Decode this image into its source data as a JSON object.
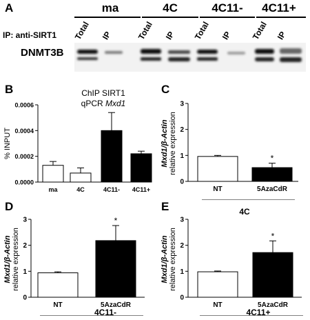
{
  "panelA": {
    "label": "A",
    "groups": [
      "ma",
      "4C",
      "4C11-",
      "4C11+"
    ],
    "lanes": [
      "Total",
      "IP",
      "Total",
      "IP",
      "Total",
      "IP",
      "Total",
      "IP"
    ],
    "ip_text": "IP: anti-SIRT1",
    "blot_label": "DNMT3B"
  },
  "panelB": {
    "label": "B",
    "title_line1": "ChIP SIRT1",
    "title_line2_prefix": "qPCR ",
    "title_line2_gene": "Mxd1"
  },
  "panelC": {
    "label": "C",
    "group_label": "4C"
  },
  "panelD": {
    "label": "D",
    "group_label": "4C11-"
  },
  "panelE": {
    "label": "E",
    "group_label": "4C11+"
  },
  "ylabel_gene": "Mxd1/β-Actin",
  "ylabel_sub": "relative expression",
  "chart_data": [
    {
      "panel": "B",
      "type": "bar",
      "categories": [
        "ma",
        "4C",
        "4C11-",
        "4C11+"
      ],
      "values": [
        0.00013,
        7e-05,
        0.0004,
        0.00022
      ],
      "errors": [
        3e-05,
        4e-05,
        0.00014,
        2e-05
      ],
      "colors": [
        "#ffffff",
        "#ffffff",
        "#000000",
        "#000000"
      ],
      "ylabel": "% INPUT",
      "ylim": [
        0,
        0.0006
      ],
      "yticks": [
        "0.0000",
        "0.0002",
        "0.0004",
        "0.0006"
      ],
      "ytick_values": [
        0,
        0.0002,
        0.0004,
        0.0006
      ]
    },
    {
      "panel": "C",
      "type": "bar",
      "categories": [
        "NT",
        "5AzaCdR"
      ],
      "values": [
        0.96,
        0.53
      ],
      "errors": [
        0.04,
        0.17
      ],
      "colors": [
        "#ffffff",
        "#000000"
      ],
      "significance": [
        "",
        "*"
      ],
      "ylim": [
        0,
        3
      ],
      "yticks": [
        "0",
        "1",
        "2",
        "3"
      ],
      "ytick_values": [
        0,
        1,
        2,
        3
      ]
    },
    {
      "panel": "D",
      "type": "bar",
      "categories": [
        "NT",
        "5AzaCdR"
      ],
      "values": [
        0.94,
        2.18
      ],
      "errors": [
        0.04,
        0.58
      ],
      "colors": [
        "#ffffff",
        "#000000"
      ],
      "significance": [
        "",
        "*"
      ],
      "ylim": [
        0,
        3
      ],
      "yticks": [
        "0",
        "1",
        "2",
        "3"
      ],
      "ytick_values": [
        0,
        1,
        2,
        3
      ]
    },
    {
      "panel": "E",
      "type": "bar",
      "categories": [
        "NT",
        "5AzaCdR"
      ],
      "values": [
        0.98,
        1.72
      ],
      "errors": [
        0.03,
        0.45
      ],
      "colors": [
        "#ffffff",
        "#000000"
      ],
      "significance": [
        "",
        "*"
      ],
      "ylim": [
        0,
        3
      ],
      "yticks": [
        "0",
        "1",
        "2",
        "3"
      ],
      "ytick_values": [
        0,
        1,
        2,
        3
      ]
    }
  ]
}
